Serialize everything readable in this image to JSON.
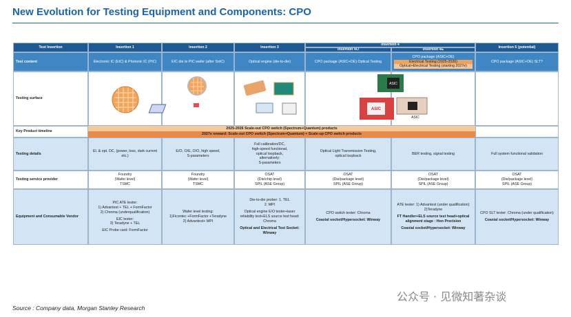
{
  "title": "New Evolution for Testing Equipment and Components: CPO",
  "table": {
    "header": [
      "Test Insertion",
      "Insertion 1",
      "Insertion 2",
      "Insertion 3",
      "Insertion 4",
      "Insertion 5 (potential)"
    ],
    "subheader": [
      "Insertion 4O",
      "Insertion 4E"
    ],
    "test_content": {
      "label": "Test content",
      "cells": [
        [
          "Electronic IC (EIC) & Photonic IC (PIC)"
        ],
        [
          "EIC die to PIC wafer (after SoIC)"
        ],
        [
          "Optical engine (die-to-die)"
        ],
        [
          "CPO package (ASIC+OE) Optical Testing"
        ],
        [
          "CPO package (ASIC+OE)",
          "Electrical Testing (2025-2026)",
          "Optical+Electrical Testing (starting 2027e)"
        ],
        [
          "CPO package (ASIC+OE) SLT?"
        ]
      ]
    },
    "testing_surface": {
      "label": "Testing surface",
      "chip_labels": [
        "ASIC",
        "ASIC",
        "ASIC"
      ]
    },
    "timeline": {
      "label": "Key Product timeline",
      "bars": [
        "2025-2026 Scale-out CPO switch (Spectrum+Quantum) products",
        "2027e onward: Scale-out CPO switch (Spectrum+Quantum) + Scale-up CPO switch products"
      ]
    },
    "testing_details": {
      "label": "Testing details",
      "cells": [
        [
          "El. & opt. DC, (power, loss, dark current etc.)"
        ],
        [
          "E/O, O/E, O/O, high speed,",
          "S-parameters"
        ],
        [
          "Full calibration/DC,",
          "high-speed functional,",
          "optical loopback,",
          "alternatively:",
          "S-parameters"
        ],
        [
          "Optical Light Transmission Testing,",
          "optical loopback"
        ],
        [
          "BER testing, signal testing"
        ],
        [
          "Full system functional validation"
        ]
      ]
    },
    "service_provider": {
      "label": "Testing service provider",
      "cells": [
        [
          "Foundry",
          "(Wafer level)",
          "TSMC"
        ],
        [
          "Foundry",
          "(Wafer level)",
          "TSMC"
        ],
        [
          "OSAT",
          "(Die/chip level)",
          "SPIL (ASE Group)"
        ],
        [
          "OSAT",
          "(Die/package level)",
          "SPIL (ASE Group)"
        ],
        [
          "OSAT",
          "(Die/package level)",
          "SPIL (ASE Group)"
        ],
        [
          "OSAT",
          "(Die/package level)",
          "SPIL (ASE Group)"
        ]
      ]
    },
    "equipment": {
      "label": "Equipment and Consumable Vendor",
      "cells": [
        [
          "PIC ATE tester:",
          "1) Advantest + TEL + FormFactor",
          "2) Chroma (underqualification)",
          "EIC tester:",
          "3) Teradyne + TEL",
          "EIC Probe card: FormFactor"
        ],
        [
          "Wafer level testing:",
          "1)Ficontec +FormFactor +Teradyne",
          "2) Advantest+ MPI"
        ],
        [
          "Die-to-die prober: 1. TEL",
          "2. MPI",
          "Optical engine E/O tester+laser reliability test+ELS source test head: Chroma",
          "Optical and Electrical Test Socket: Winway"
        ],
        [
          "CPO switch tester: Chroma",
          "Coaxial socket/Hypersocket: Winway"
        ],
        [
          "ATE tester: 1) Advantest (under qualification)",
          "2)Teradyne",
          "FT Handler+ELS source test head+optical alignment stage : Hon Precision",
          "Coaxial socket/Hypersocket: Winway"
        ],
        [
          "CPO SLT tester: Chroma (under qualification)",
          "Coaxial socket/Hypersocket: Winway"
        ]
      ]
    }
  },
  "source": "Source : Company data, Morgan Stanley Research",
  "watermark": "公众号 · 见微知著杂谈"
}
